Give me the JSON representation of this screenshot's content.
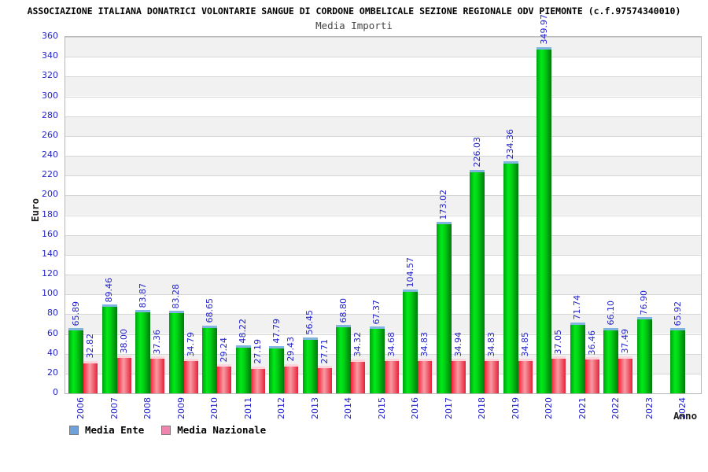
{
  "chart_data": {
    "type": "bar",
    "title": "ASSOCIAZIONE ITALIANA DONATRICI VOLONTARIE SANGUE DI CORDONE OMBELICALE SEZIONE REGIONALE ODV PIEMONTE (c.f.97574340010)",
    "subtitle": "Media Importi",
    "xlabel": "Anno",
    "ylabel": "Euro",
    "ylim": [
      0,
      360
    ],
    "ytick_step": 20,
    "grid": "horizontal-with-alternating-bands",
    "legend_position": "bottom-left",
    "value_label_format": "2-decimals, rotated 90° CCW, blue",
    "categories": [
      "2006",
      "2007",
      "2008",
      "2009",
      "2010",
      "2011",
      "2012",
      "2013",
      "2014",
      "2015",
      "2016",
      "2017",
      "2018",
      "2019",
      "2020",
      "2021",
      "2022",
      "2023",
      "2024"
    ],
    "series": [
      {
        "name": "Media Ente",
        "legend_color": "#6da2dc",
        "bar_style": "green-gradient-blue-cap",
        "values": [
          65.89,
          89.46,
          83.87,
          83.28,
          68.65,
          48.22,
          47.79,
          56.45,
          68.8,
          67.37,
          104.57,
          173.02,
          226.03,
          234.36,
          349.97,
          71.74,
          66.1,
          76.9,
          65.92
        ]
      },
      {
        "name": "Media Nazionale",
        "legend_color": "#ef84ae",
        "bar_style": "red-gradient-pink-cap",
        "values": [
          32.82,
          38.0,
          37.36,
          34.79,
          29.24,
          27.19,
          29.43,
          27.71,
          34.32,
          34.68,
          34.83,
          34.94,
          34.83,
          34.85,
          37.05,
          36.46,
          37.49,
          null,
          null
        ]
      }
    ],
    "style": {
      "label_color": "#2222cc",
      "band_color": "#f1f1f1",
      "gridline_color": "#d6d6d6",
      "plot_border_color": "#b6b6b6",
      "green_bar_cap": "#82b4e2",
      "red_bar_cap": "#fad6dc"
    }
  }
}
